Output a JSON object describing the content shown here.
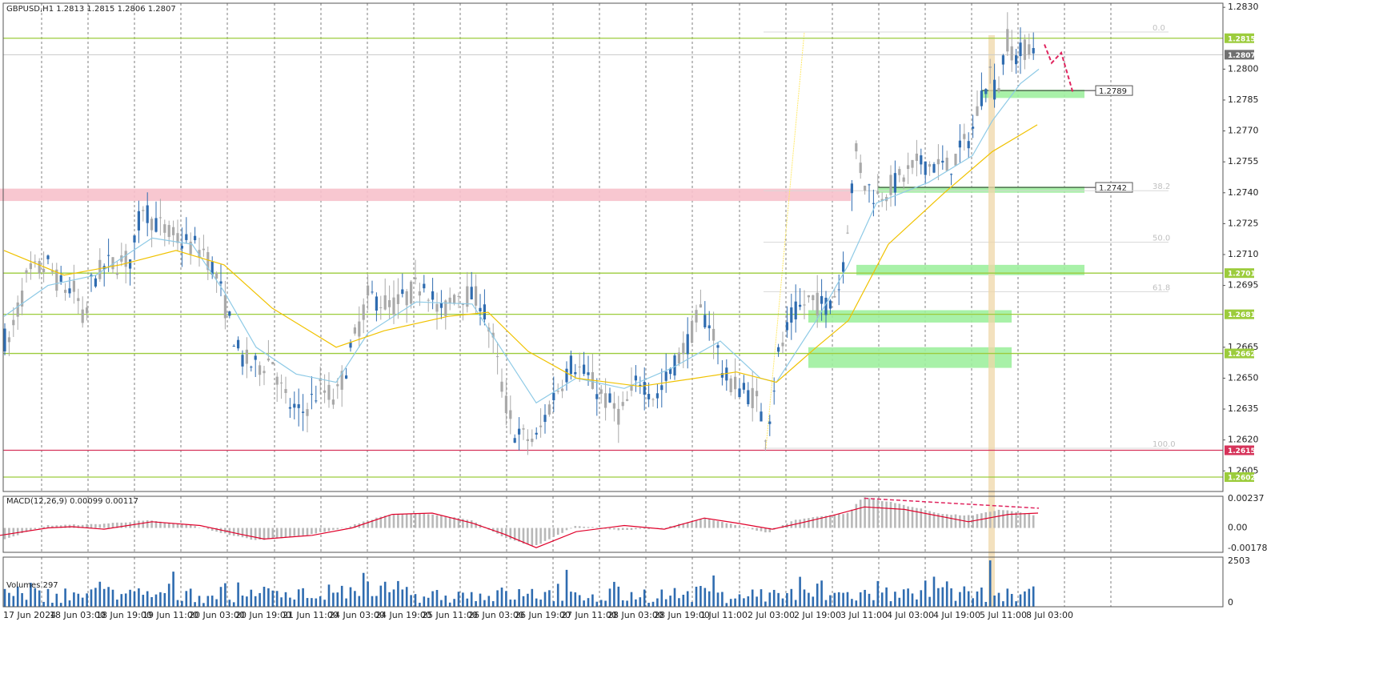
{
  "colors": {
    "bull": "#2f6cb0",
    "bear": "#a9a9a9",
    "ma_fast": "#8ecae6",
    "ma_slow": "#f0c200",
    "level": "#9ccc3c",
    "support_zone": "#9ef09e",
    "resistance_zone": "#f7c1cb",
    "fib_line": "#e6e6e6",
    "fib_vertical": "#efd7a8",
    "low_line": "#d6335a",
    "forecast": "#e0245e",
    "macd_hist": "#b8b8b8",
    "macd_signal": "#e0002a",
    "volume": "#2f6cb0",
    "grid": "#606060",
    "yellow_line": "#ffe96a",
    "current_price": "#707070"
  },
  "header": {
    "symbol_line": "GBPUSD,H1  1.2813 1.2815 1.2806 1.2807"
  },
  "chart_data": {
    "type": "candlestick",
    "symbol": "GBPUSD",
    "timeframe": "H1",
    "ohlc_last": {
      "open": 1.2813,
      "high": 1.2815,
      "low": 1.2806,
      "close": 1.2807
    },
    "ylim": [
      1.2595,
      1.2832
    ],
    "price_axis_ticks": [
      "1.2830",
      "1.2800",
      "1.2785",
      "1.2770",
      "1.2755",
      "1.2740",
      "1.2725",
      "1.2710",
      "1.2695",
      "1.2665",
      "1.2650",
      "1.2635",
      "1.2620",
      "1.2605"
    ],
    "x_axis_ticks": [
      "17 Jun 2024",
      "18 Jun 03:00",
      "18 Jun 19:00",
      "19 Jun 11:00",
      "20 Jun 03:00",
      "20 Jun 19:00",
      "21 Jun 11:00",
      "24 Jun 03:00",
      "24 Jun 19:00",
      "25 Jun 11:00",
      "26 Jun 03:00",
      "26 Jun 19:00",
      "27 Jun 11:00",
      "28 Jun 03:00",
      "28 Jun 19:00",
      "1 Jul 11:00",
      "2 Jul 03:00",
      "2 Jul 19:00",
      "3 Jul 11:00",
      "4 Jul 03:00",
      "4 Jul 19:00",
      "5 Jul 11:00",
      "8 Jul 03:00"
    ],
    "price_path": [
      [
        0,
        1.2675
      ],
      [
        10,
        1.2665
      ],
      [
        20,
        1.268
      ],
      [
        35,
        1.27
      ],
      [
        60,
        1.2705
      ],
      [
        75,
        1.2695
      ],
      [
        95,
        1.2692
      ],
      [
        105,
        1.2675
      ],
      [
        115,
        1.2698
      ],
      [
        135,
        1.2705
      ],
      [
        165,
        1.2708
      ],
      [
        178,
        1.2735
      ],
      [
        188,
        1.2728
      ],
      [
        210,
        1.272
      ],
      [
        235,
        1.2715
      ],
      [
        255,
        1.2712
      ],
      [
        270,
        1.27
      ],
      [
        285,
        1.268
      ],
      [
        300,
        1.266
      ],
      [
        320,
        1.2655
      ],
      [
        340,
        1.266
      ],
      [
        355,
        1.264
      ],
      [
        375,
        1.2632
      ],
      [
        400,
        1.2645
      ],
      [
        420,
        1.264
      ],
      [
        440,
        1.2665
      ],
      [
        460,
        1.269
      ],
      [
        490,
        1.2685
      ],
      [
        510,
        1.269
      ],
      [
        530,
        1.2698
      ],
      [
        550,
        1.268
      ],
      [
        570,
        1.2692
      ],
      [
        600,
        1.2688
      ],
      [
        615,
        1.267
      ],
      [
        630,
        1.264
      ],
      [
        645,
        1.2622
      ],
      [
        670,
        1.262
      ],
      [
        690,
        1.264
      ],
      [
        715,
        1.2658
      ],
      [
        735,
        1.265
      ],
      [
        755,
        1.264
      ],
      [
        775,
        1.2632
      ],
      [
        800,
        1.265
      ],
      [
        820,
        1.264
      ],
      [
        840,
        1.2655
      ],
      [
        860,
        1.2668
      ],
      [
        875,
        1.2682
      ],
      [
        890,
        1.2675
      ],
      [
        905,
        1.265
      ],
      [
        925,
        1.2645
      ],
      [
        945,
        1.264
      ],
      [
        958,
        1.2622
      ],
      [
        972,
        1.266
      ],
      [
        990,
        1.268
      ],
      [
        1010,
        1.2688
      ],
      [
        1030,
        1.2685
      ],
      [
        1050,
        1.2695
      ],
      [
        1062,
        1.2735
      ],
      [
        1070,
        1.276
      ],
      [
        1080,
        1.2745
      ],
      [
        1095,
        1.2738
      ],
      [
        1120,
        1.2745
      ],
      [
        1150,
        1.2755
      ],
      [
        1185,
        1.2752
      ],
      [
        1200,
        1.276
      ],
      [
        1215,
        1.277
      ],
      [
        1228,
        1.279
      ],
      [
        1238,
        1.28
      ],
      [
        1245,
        1.2786
      ],
      [
        1258,
        1.2815
      ],
      [
        1270,
        1.2805
      ],
      [
        1285,
        1.2812
      ],
      [
        1295,
        1.2807
      ]
    ],
    "ma_fast_path": [
      [
        5,
        1.268
      ],
      [
        60,
        1.2695
      ],
      [
        120,
        1.27
      ],
      [
        190,
        1.2718
      ],
      [
        240,
        1.2715
      ],
      [
        280,
        1.2692
      ],
      [
        320,
        1.2665
      ],
      [
        370,
        1.2652
      ],
      [
        420,
        1.2648
      ],
      [
        460,
        1.2672
      ],
      [
        520,
        1.2687
      ],
      [
        590,
        1.2686
      ],
      [
        630,
        1.2662
      ],
      [
        670,
        1.2638
      ],
      [
        720,
        1.265
      ],
      [
        780,
        1.2645
      ],
      [
        840,
        1.2655
      ],
      [
        900,
        1.2668
      ],
      [
        950,
        1.265
      ],
      [
        970,
        1.2648
      ],
      [
        1020,
        1.2678
      ],
      [
        1060,
        1.2705
      ],
      [
        1095,
        1.2735
      ],
      [
        1160,
        1.2745
      ],
      [
        1215,
        1.2758
      ],
      [
        1240,
        1.2775
      ],
      [
        1275,
        1.2793
      ],
      [
        1298,
        1.28
      ]
    ],
    "ma_slow_path": [
      [
        5,
        1.2712
      ],
      [
        80,
        1.27
      ],
      [
        150,
        1.2705
      ],
      [
        220,
        1.2712
      ],
      [
        280,
        1.2705
      ],
      [
        340,
        1.2684
      ],
      [
        420,
        1.2665
      ],
      [
        480,
        1.2673
      ],
      [
        560,
        1.268
      ],
      [
        610,
        1.2682
      ],
      [
        660,
        1.2663
      ],
      [
        720,
        1.265
      ],
      [
        800,
        1.2646
      ],
      [
        870,
        1.265
      ],
      [
        920,
        1.2653
      ],
      [
        970,
        1.2648
      ],
      [
        1020,
        1.2665
      ],
      [
        1060,
        1.2678
      ],
      [
        1110,
        1.2715
      ],
      [
        1180,
        1.274
      ],
      [
        1240,
        1.276
      ],
      [
        1296,
        1.2773
      ]
    ],
    "horizontal_levels": [
      {
        "label": "1.2815",
        "value": 1.2815
      },
      {
        "label": "1.2701",
        "value": 1.2701
      },
      {
        "label": "1.2681",
        "value": 1.2681
      },
      {
        "label": "1.2662",
        "value": 1.2662
      },
      {
        "label": "1.2602",
        "value": 1.2602
      }
    ],
    "low_level": {
      "label": "1.2615",
      "value": 1.2615
    },
    "current_price_label": "1.2807",
    "current_price": 1.2807,
    "zones": [
      {
        "kind": "resistance",
        "from_x": 0,
        "to_x": 1063,
        "low": 1.2736,
        "high": 1.2742
      },
      {
        "kind": "support",
        "from_x": 1226,
        "to_x": 1355,
        "low": 1.2786,
        "high": 1.279,
        "label": "1.2789"
      },
      {
        "kind": "support",
        "from_x": 1097,
        "to_x": 1355,
        "low": 1.274,
        "high": 1.2743,
        "label": "1.2742"
      },
      {
        "kind": "support",
        "from_x": 1070,
        "to_x": 1355,
        "low": 1.27,
        "high": 1.2705
      },
      {
        "kind": "support",
        "from_x": 1010,
        "to_x": 1264,
        "low": 1.2677,
        "high": 1.2683
      },
      {
        "kind": "support",
        "from_x": 1010,
        "to_x": 1264,
        "low": 1.2655,
        "high": 1.2665
      }
    ],
    "fibonacci": [
      {
        "label": "0.0",
        "value": 1.2818
      },
      {
        "label": "38.2",
        "value": 1.2741
      },
      {
        "label": "50.0",
        "value": 1.2716
      },
      {
        "label": "61.8",
        "value": 1.2692
      },
      {
        "label": "100.0",
        "value": 1.2616
      }
    ],
    "forecast_path": [
      [
        1305,
        1.2812
      ],
      [
        1314,
        1.2803
      ],
      [
        1326,
        1.2808
      ],
      [
        1341,
        1.2788
      ]
    ],
    "macd": {
      "label": "MACD(12,26,9) 0.00099 0.00117",
      "ticks": [
        "0.00237",
        "0.00",
        "-0.00178"
      ],
      "range": [
        -0.00178,
        0.00237
      ],
      "hist_path": [
        [
          0,
          -0.001
        ],
        [
          60,
          0.0002
        ],
        [
          120,
          0.0003
        ],
        [
          185,
          0.0006
        ],
        [
          240,
          0.0002
        ],
        [
          290,
          -0.0006
        ],
        [
          320,
          -0.001
        ],
        [
          380,
          -0.0006
        ],
        [
          430,
          0.0
        ],
        [
          480,
          0.001
        ],
        [
          530,
          0.0012
        ],
        [
          590,
          0.0006
        ],
        [
          630,
          -0.0008
        ],
        [
          668,
          -0.0015
        ],
        [
          720,
          0.0002
        ],
        [
          780,
          -0.0002
        ],
        [
          830,
          0.0
        ],
        [
          880,
          0.0008
        ],
        [
          920,
          0.0002
        ],
        [
          960,
          -0.0004
        ],
        [
          990,
          0.0006
        ],
        [
          1030,
          0.001
        ],
        [
          1060,
          0.0012
        ],
        [
          1078,
          0.0025
        ],
        [
          1120,
          0.002
        ],
        [
          1180,
          0.0011
        ],
        [
          1215,
          0.001
        ],
        [
          1250,
          0.0015
        ],
        [
          1297,
          0.001
        ]
      ],
      "signal_path": [
        [
          0,
          -0.0006
        ],
        [
          60,
          0.0
        ],
        [
          90,
          0.0001
        ],
        [
          130,
          -0.0001
        ],
        [
          190,
          0.0005
        ],
        [
          250,
          0.0002
        ],
        [
          300,
          -0.0005
        ],
        [
          330,
          -0.0009
        ],
        [
          390,
          -0.0006
        ],
        [
          440,
          0.0
        ],
        [
          490,
          0.0011
        ],
        [
          540,
          0.0012
        ],
        [
          590,
          0.0004
        ],
        [
          630,
          -0.0005
        ],
        [
          670,
          -0.0016
        ],
        [
          720,
          -0.0003
        ],
        [
          780,
          0.0002
        ],
        [
          830,
          -0.0001
        ],
        [
          880,
          0.0008
        ],
        [
          920,
          0.0004
        ],
        [
          965,
          -0.0001
        ],
        [
          1000,
          0.0004
        ],
        [
          1040,
          0.001
        ],
        [
          1080,
          0.0017
        ],
        [
          1130,
          0.0015
        ],
        [
          1210,
          0.0005
        ],
        [
          1260,
          0.0011
        ],
        [
          1297,
          0.0012
        ]
      ],
      "divergence_line": [
        [
          1080,
          0.0024
        ],
        [
          1298,
          0.0016
        ]
      ]
    },
    "volumes": {
      "label": "Volumes 297",
      "ticks": [
        "2503",
        "0"
      ],
      "max": 2503
    },
    "grid": true
  }
}
